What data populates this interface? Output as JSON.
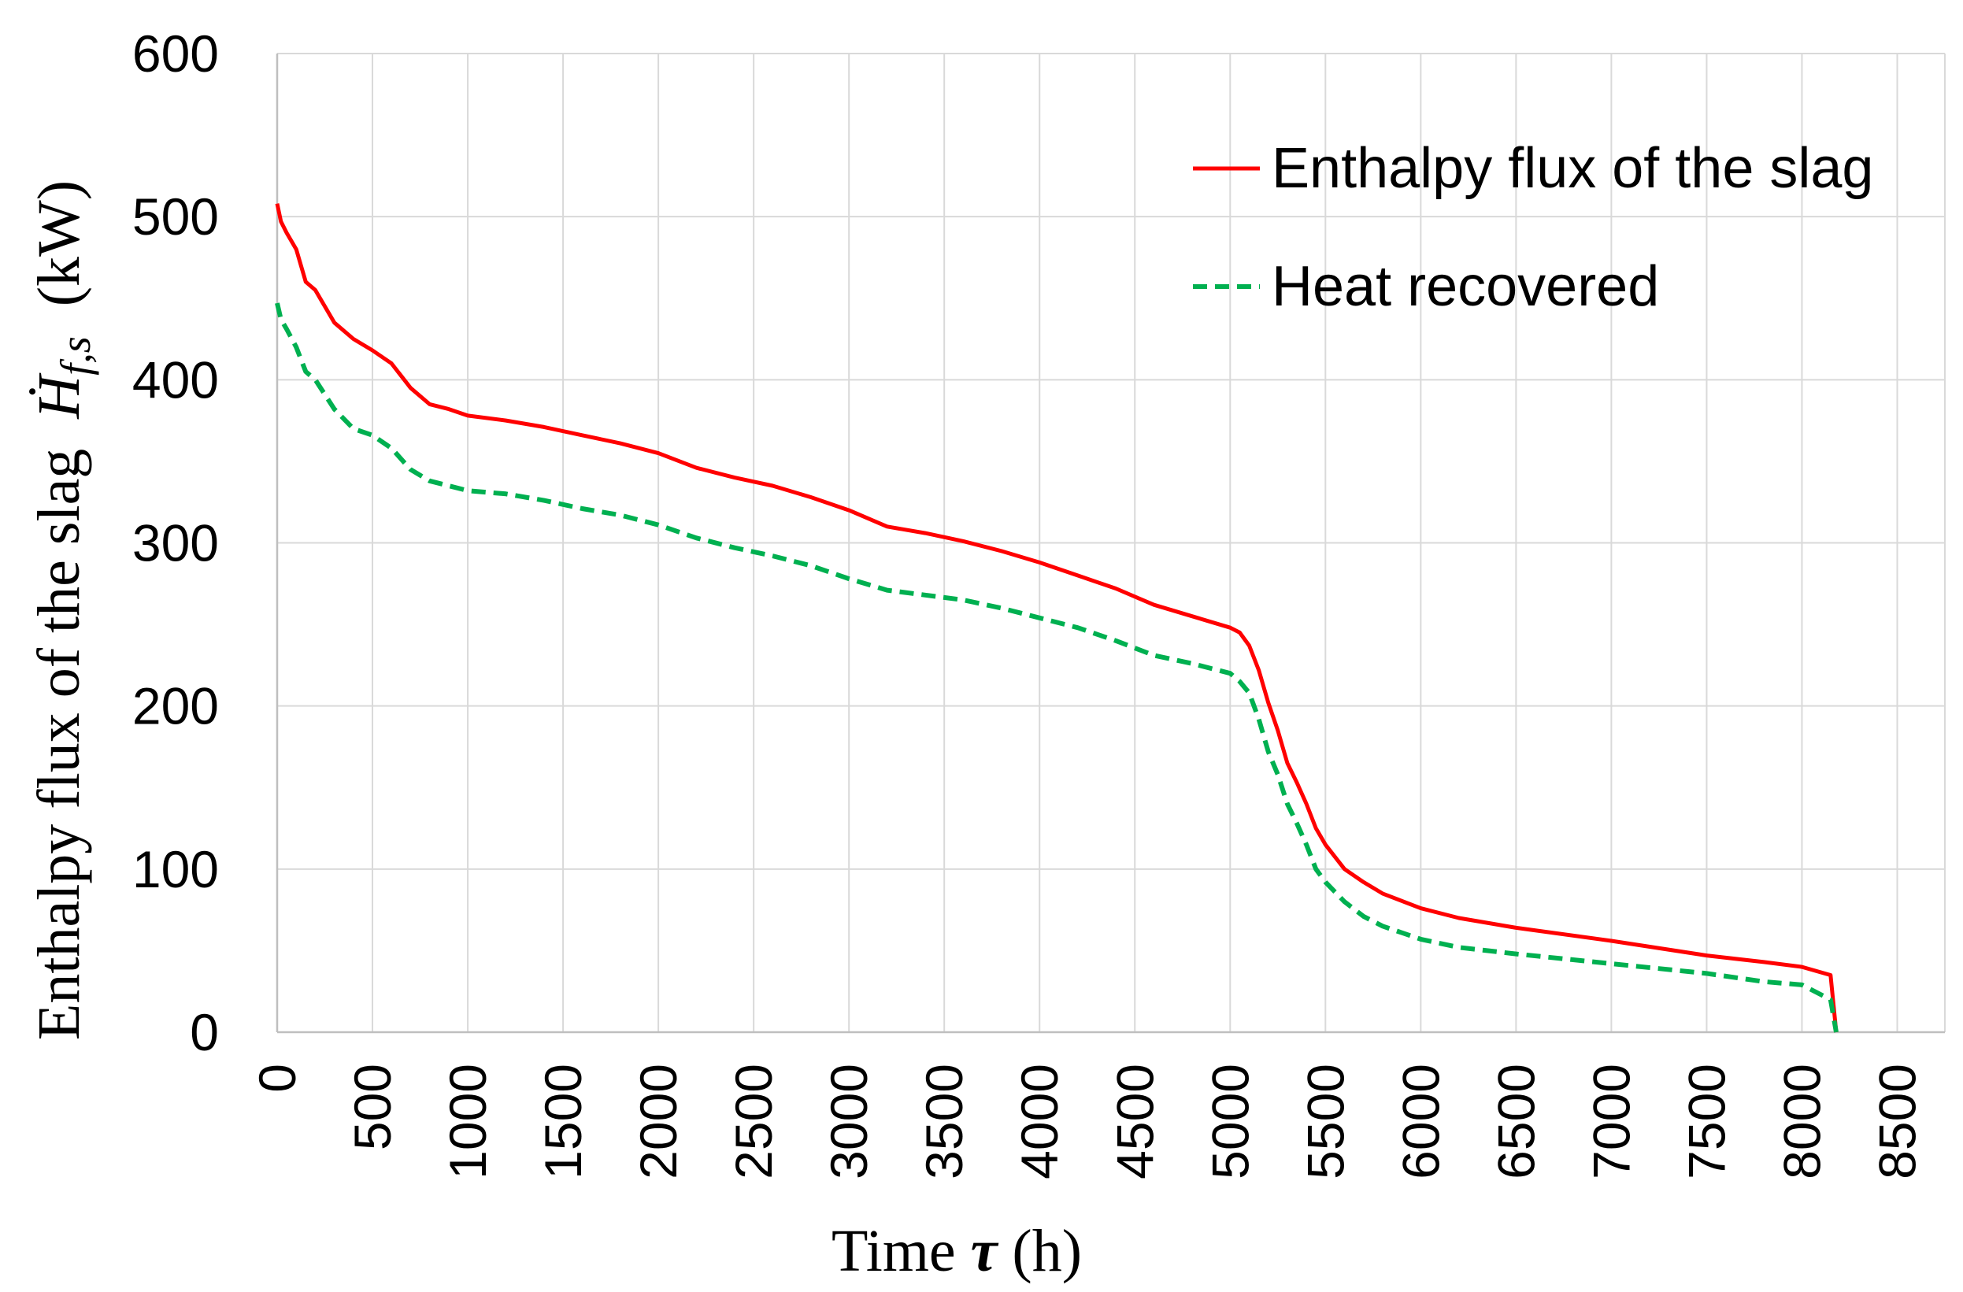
{
  "chart_data": {
    "type": "line",
    "title": "",
    "xlabel": "Time τ (h)",
    "xlabel_parts": {
      "prefix": "Time ",
      "symbol": "τ",
      "suffix": " (h)"
    },
    "ylabel": "Enthalpy flux of the slag Ḣf,s (kW)",
    "ylabel_parts": {
      "prefix": "Enthalpy flux of the slag  ",
      "symbol": "Ḣ",
      "subscript": "f,s",
      "suffix": "  (kW)"
    },
    "xlim": [
      0,
      8750
    ],
    "ylim": [
      0,
      600
    ],
    "xticks": [
      0,
      500,
      1000,
      1500,
      2000,
      2500,
      3000,
      3500,
      4000,
      4500,
      5000,
      5500,
      6000,
      6500,
      7000,
      7500,
      8000,
      8500
    ],
    "xtick_labels": [
      "0",
      "500",
      "1000",
      "1500",
      "2000",
      "2500",
      "3000",
      "3500",
      "4000",
      "4500",
      "5000",
      "5500",
      "6000",
      "6500",
      "7000",
      "7500",
      "8000",
      "8500"
    ],
    "yticks": [
      0,
      100,
      200,
      300,
      400,
      500,
      600
    ],
    "ytick_labels": [
      "0",
      "100",
      "200",
      "300",
      "400",
      "500",
      "600"
    ],
    "grid": true,
    "legend_position": "top-right",
    "series": [
      {
        "name": "Enthalpy flux of the slag",
        "color": "#ff0000",
        "style": "solid",
        "x": [
          0,
          20,
          50,
          100,
          150,
          200,
          300,
          400,
          500,
          600,
          700,
          800,
          900,
          1000,
          1200,
          1400,
          1600,
          1800,
          2000,
          2200,
          2400,
          2600,
          2800,
          3000,
          3200,
          3400,
          3600,
          3800,
          4000,
          4200,
          4400,
          4600,
          4800,
          5000,
          5050,
          5100,
          5150,
          5200,
          5250,
          5300,
          5350,
          5400,
          5450,
          5500,
          5600,
          5700,
          5800,
          6000,
          6200,
          6500,
          7000,
          7500,
          7800,
          8000,
          8150,
          8180
        ],
        "y": [
          508,
          497,
          490,
          480,
          460,
          455,
          435,
          425,
          418,
          410,
          395,
          385,
          382,
          378,
          375,
          371,
          366,
          361,
          355,
          346,
          340,
          335,
          328,
          320,
          310,
          306,
          301,
          295,
          288,
          280,
          272,
          262,
          255,
          248,
          245,
          237,
          222,
          202,
          185,
          165,
          153,
          140,
          125,
          115,
          100,
          92,
          85,
          76,
          70,
          64,
          56,
          47,
          43,
          40,
          35,
          0
        ]
      },
      {
        "name": "Heat recovered",
        "color": "#00b050",
        "style": "dashed",
        "x": [
          0,
          20,
          50,
          100,
          150,
          200,
          300,
          400,
          500,
          600,
          700,
          800,
          900,
          1000,
          1200,
          1400,
          1600,
          1800,
          2000,
          2200,
          2400,
          2600,
          2800,
          3000,
          3200,
          3400,
          3600,
          3800,
          4000,
          4200,
          4400,
          4600,
          4800,
          5000,
          5050,
          5100,
          5150,
          5200,
          5250,
          5300,
          5350,
          5400,
          5450,
          5500,
          5600,
          5700,
          5800,
          6000,
          6200,
          6500,
          7000,
          7500,
          7800,
          8000,
          8150,
          8180
        ],
        "y": [
          447,
          437,
          431,
          420,
          405,
          400,
          382,
          370,
          366,
          358,
          345,
          338,
          335,
          332,
          330,
          326,
          321,
          317,
          311,
          303,
          297,
          292,
          286,
          278,
          271,
          268,
          265,
          260,
          254,
          248,
          240,
          231,
          226,
          220,
          215,
          208,
          192,
          172,
          158,
          140,
          128,
          115,
          100,
          92,
          80,
          71,
          65,
          57,
          52,
          48,
          42,
          36,
          31,
          29,
          20,
          0
        ]
      }
    ]
  }
}
